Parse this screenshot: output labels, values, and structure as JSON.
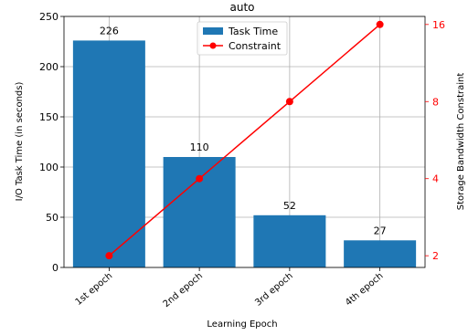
{
  "chart_data": {
    "type": "bar",
    "title": "auto",
    "xlabel": "Learning Epoch",
    "ylabel": "I/O Task Time (in seconds)",
    "y2label": "Storage Bandwidth Constraint",
    "categories": [
      "1st epoch",
      "2nd epoch",
      "3rd epoch",
      "4th epoch"
    ],
    "series": [
      {
        "name": "Task Time",
        "type": "bar",
        "axis": "left",
        "color": "#1f77b4",
        "values": [
          226,
          110,
          52,
          27
        ],
        "data_labels": [
          "226",
          "110",
          "52",
          "27"
        ]
      },
      {
        "name": "Constraint",
        "type": "line",
        "axis": "right",
        "color": "#ff0000",
        "marker": "circle",
        "values": [
          2,
          4,
          8,
          16
        ]
      }
    ],
    "ylim": [
      0,
      250
    ],
    "yticks": [
      0,
      50,
      100,
      150,
      200,
      250
    ],
    "y2scale": "log2",
    "y2lim": [
      1.8,
      17.2
    ],
    "y2ticks": [
      2,
      4,
      8,
      16
    ],
    "grid": true,
    "legend_position": "top-center"
  }
}
